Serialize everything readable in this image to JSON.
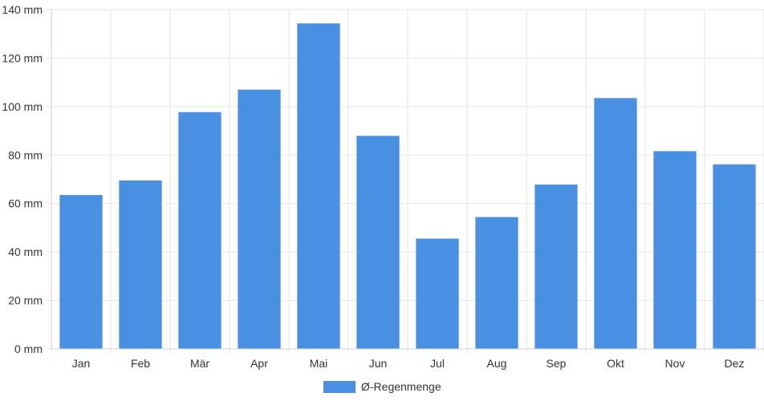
{
  "chart_data": {
    "type": "bar",
    "categories": [
      "Jan",
      "Feb",
      "Mär",
      "Apr",
      "Mai",
      "Jun",
      "Jul",
      "Aug",
      "Sep",
      "Okt",
      "Nov",
      "Dez"
    ],
    "series": [
      {
        "name": "Ø-Regenmenge",
        "values": [
          63.5,
          69.5,
          97.7,
          107,
          134.3,
          87.9,
          45.5,
          54.4,
          67.8,
          103.5,
          81.6,
          76.1
        ]
      }
    ],
    "y_ticks": [
      "0 mm",
      "20 mm",
      "40 mm",
      "60 mm",
      "80 mm",
      "100 mm",
      "120 mm",
      "140 mm"
    ],
    "ylim": [
      0,
      140
    ],
    "grid": true,
    "legend_position": "bottom",
    "colors": {
      "bar": "#4a90e2",
      "grid": "#e6e6e6",
      "axis": "#d0d0d0",
      "text": "#333333"
    }
  }
}
